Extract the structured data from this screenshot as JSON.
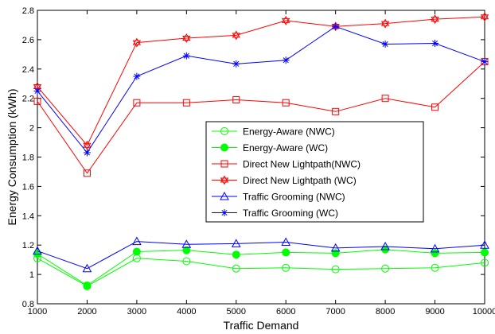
{
  "chart_data": {
    "type": "line",
    "xlabel": "Traffic Demand",
    "ylabel": "Energy Consumption (kWh)",
    "x": [
      1000,
      2000,
      3000,
      4000,
      5000,
      6000,
      7000,
      8000,
      9000,
      10000
    ],
    "xlim": [
      1000,
      10000
    ],
    "ylim": [
      0.8,
      2.8
    ],
    "xticks": [
      "1000",
      "2000",
      "3000",
      "4000",
      "5000",
      "6000",
      "7000",
      "8000",
      "9000",
      "10000"
    ],
    "yticks": [
      "0.8",
      "1",
      "1.2",
      "1.4",
      "1.6",
      "1.8",
      "2",
      "2.2",
      "2.4",
      "2.6",
      "2.8"
    ],
    "grid": false,
    "legend_position": "center-right",
    "series": [
      {
        "name": "Energy-Aware (NWC)",
        "color": "#00ff00",
        "marker": "circle-open",
        "values": [
          1.11,
          0.92,
          1.11,
          1.09,
          1.04,
          1.045,
          1.035,
          1.04,
          1.045,
          1.08
        ]
      },
      {
        "name": "Energy-Aware (WC)",
        "color": "#00ff00",
        "marker": "circle-filled",
        "values": [
          1.14,
          0.925,
          1.155,
          1.165,
          1.135,
          1.15,
          1.145,
          1.17,
          1.145,
          1.15
        ]
      },
      {
        "name": "Direct New Lightpath(NWC)",
        "color": "#ff0000",
        "marker": "square-open",
        "values": [
          2.18,
          1.69,
          2.17,
          2.17,
          2.19,
          2.17,
          2.11,
          2.2,
          2.14,
          2.45
        ]
      },
      {
        "name": "Direct New Lightpath (WC)",
        "color": "#ff0000",
        "marker": "hexagram",
        "values": [
          2.28,
          1.88,
          2.58,
          2.61,
          2.63,
          2.73,
          2.69,
          2.71,
          2.74,
          2.755
        ]
      },
      {
        "name": "Traffic Grooming (NWC)",
        "color": "#0000ff",
        "marker": "triangle-open",
        "values": [
          1.16,
          1.04,
          1.225,
          1.205,
          1.21,
          1.22,
          1.18,
          1.19,
          1.175,
          1.2
        ]
      },
      {
        "name": "Traffic Grooming (WC)",
        "color": "#0000ff",
        "marker": "asterisk",
        "values": [
          2.25,
          1.83,
          2.35,
          2.49,
          2.435,
          2.46,
          2.69,
          2.57,
          2.575,
          2.45
        ]
      }
    ]
  }
}
